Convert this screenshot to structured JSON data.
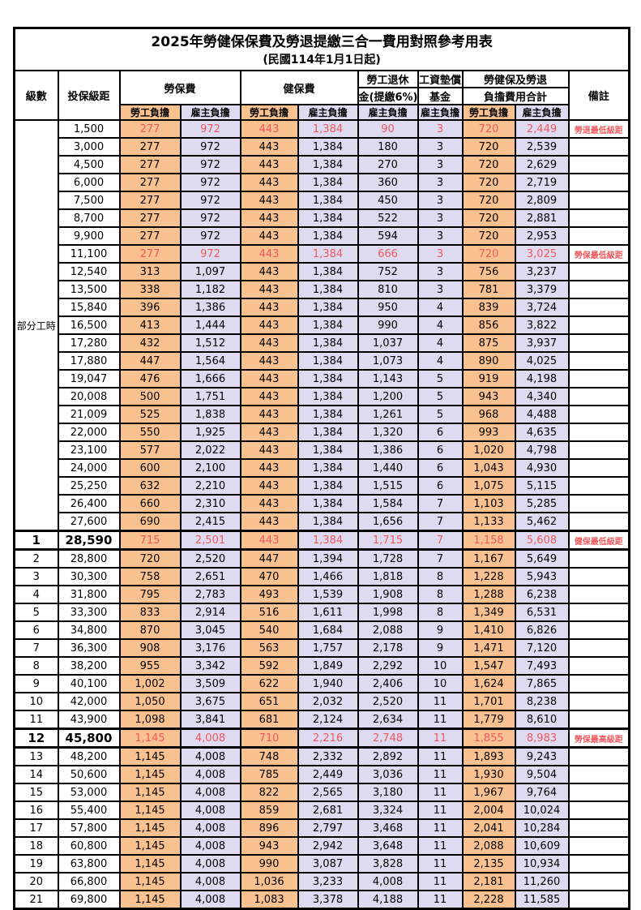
{
  "title": "2025年勞健保保費及勞退提繳三合一費用對照參考用表",
  "subtitle": "(民國114年1月1日起)",
  "columns": {
    "level": "級數",
    "bracket": "投保級距",
    "labor_insurance": "勞保費",
    "health_insurance": "健保費",
    "pension_line1": "勞工退休",
    "pension_line2": "金(提繳6%)",
    "wage_fund_line1": "工資墊償",
    "wage_fund_line2": "基金",
    "total_line1": "勞健保及勞退",
    "total_line2": "負擔費用合計",
    "remark": "備註",
    "employee_share": "勞工負擔",
    "employer_share": "雇主負擔"
  },
  "part_time_label": "部分工時",
  "part_time_span": 23,
  "colors": {
    "employee_fill": "#F8C18F",
    "employer_fill": "#DEDAF0",
    "highlight_text": "#EE5A5E"
  },
  "rows": [
    {
      "level": "",
      "bracket": "1,500",
      "labor_emp": "277",
      "labor_er": "972",
      "health_emp": "443",
      "health_er": "1,384",
      "pension_er": "90",
      "wage_er": "3",
      "total_emp": "720",
      "total_er": "2,449",
      "remark": "勞退最低級距",
      "highlight": true,
      "emphasis": false
    },
    {
      "level": "",
      "bracket": "3,000",
      "labor_emp": "277",
      "labor_er": "972",
      "health_emp": "443",
      "health_er": "1,384",
      "pension_er": "180",
      "wage_er": "3",
      "total_emp": "720",
      "total_er": "2,539",
      "remark": "",
      "highlight": false,
      "emphasis": false
    },
    {
      "level": "",
      "bracket": "4,500",
      "labor_emp": "277",
      "labor_er": "972",
      "health_emp": "443",
      "health_er": "1,384",
      "pension_er": "270",
      "wage_er": "3",
      "total_emp": "720",
      "total_er": "2,629",
      "remark": "",
      "highlight": false,
      "emphasis": false
    },
    {
      "level": "",
      "bracket": "6,000",
      "labor_emp": "277",
      "labor_er": "972",
      "health_emp": "443",
      "health_er": "1,384",
      "pension_er": "360",
      "wage_er": "3",
      "total_emp": "720",
      "total_er": "2,719",
      "remark": "",
      "highlight": false,
      "emphasis": false
    },
    {
      "level": "",
      "bracket": "7,500",
      "labor_emp": "277",
      "labor_er": "972",
      "health_emp": "443",
      "health_er": "1,384",
      "pension_er": "450",
      "wage_er": "3",
      "total_emp": "720",
      "total_er": "2,809",
      "remark": "",
      "highlight": false,
      "emphasis": false
    },
    {
      "level": "",
      "bracket": "8,700",
      "labor_emp": "277",
      "labor_er": "972",
      "health_emp": "443",
      "health_er": "1,384",
      "pension_er": "522",
      "wage_er": "3",
      "total_emp": "720",
      "total_er": "2,881",
      "remark": "",
      "highlight": false,
      "emphasis": false
    },
    {
      "level": "",
      "bracket": "9,900",
      "labor_emp": "277",
      "labor_er": "972",
      "health_emp": "443",
      "health_er": "1,384",
      "pension_er": "594",
      "wage_er": "3",
      "total_emp": "720",
      "total_er": "2,953",
      "remark": "",
      "highlight": false,
      "emphasis": false
    },
    {
      "level": "",
      "bracket": "11,100",
      "labor_emp": "277",
      "labor_er": "972",
      "health_emp": "443",
      "health_er": "1,384",
      "pension_er": "666",
      "wage_er": "3",
      "total_emp": "720",
      "total_er": "3,025",
      "remark": "勞保最低級距",
      "highlight": true,
      "emphasis": false
    },
    {
      "level": "",
      "bracket": "12,540",
      "labor_emp": "313",
      "labor_er": "1,097",
      "health_emp": "443",
      "health_er": "1,384",
      "pension_er": "752",
      "wage_er": "3",
      "total_emp": "756",
      "total_er": "3,237",
      "remark": "",
      "highlight": false,
      "emphasis": false
    },
    {
      "level": "",
      "bracket": "13,500",
      "labor_emp": "338",
      "labor_er": "1,182",
      "health_emp": "443",
      "health_er": "1,384",
      "pension_er": "810",
      "wage_er": "3",
      "total_emp": "781",
      "total_er": "3,379",
      "remark": "",
      "highlight": false,
      "emphasis": false
    },
    {
      "level": "",
      "bracket": "15,840",
      "labor_emp": "396",
      "labor_er": "1,386",
      "health_emp": "443",
      "health_er": "1,384",
      "pension_er": "950",
      "wage_er": "4",
      "total_emp": "839",
      "total_er": "3,724",
      "remark": "",
      "highlight": false,
      "emphasis": false
    },
    {
      "level": "",
      "bracket": "16,500",
      "labor_emp": "413",
      "labor_er": "1,444",
      "health_emp": "443",
      "health_er": "1,384",
      "pension_er": "990",
      "wage_er": "4",
      "total_emp": "856",
      "total_er": "3,822",
      "remark": "",
      "highlight": false,
      "emphasis": false
    },
    {
      "level": "",
      "bracket": "17,280",
      "labor_emp": "432",
      "labor_er": "1,512",
      "health_emp": "443",
      "health_er": "1,384",
      "pension_er": "1,037",
      "wage_er": "4",
      "total_emp": "875",
      "total_er": "3,937",
      "remark": "",
      "highlight": false,
      "emphasis": false
    },
    {
      "level": "",
      "bracket": "17,880",
      "labor_emp": "447",
      "labor_er": "1,564",
      "health_emp": "443",
      "health_er": "1,384",
      "pension_er": "1,073",
      "wage_er": "4",
      "total_emp": "890",
      "total_er": "4,025",
      "remark": "",
      "highlight": false,
      "emphasis": false
    },
    {
      "level": "",
      "bracket": "19,047",
      "labor_emp": "476",
      "labor_er": "1,666",
      "health_emp": "443",
      "health_er": "1,384",
      "pension_er": "1,143",
      "wage_er": "5",
      "total_emp": "919",
      "total_er": "4,198",
      "remark": "",
      "highlight": false,
      "emphasis": false
    },
    {
      "level": "",
      "bracket": "20,008",
      "labor_emp": "500",
      "labor_er": "1,751",
      "health_emp": "443",
      "health_er": "1,384",
      "pension_er": "1,200",
      "wage_er": "5",
      "total_emp": "943",
      "total_er": "4,340",
      "remark": "",
      "highlight": false,
      "emphasis": false
    },
    {
      "level": "",
      "bracket": "21,009",
      "labor_emp": "525",
      "labor_er": "1,838",
      "health_emp": "443",
      "health_er": "1,384",
      "pension_er": "1,261",
      "wage_er": "5",
      "total_emp": "968",
      "total_er": "4,488",
      "remark": "",
      "highlight": false,
      "emphasis": false
    },
    {
      "level": "",
      "bracket": "22,000",
      "labor_emp": "550",
      "labor_er": "1,925",
      "health_emp": "443",
      "health_er": "1,384",
      "pension_er": "1,320",
      "wage_er": "6",
      "total_emp": "993",
      "total_er": "4,635",
      "remark": "",
      "highlight": false,
      "emphasis": false
    },
    {
      "level": "",
      "bracket": "23,100",
      "labor_emp": "577",
      "labor_er": "2,022",
      "health_emp": "443",
      "health_er": "1,384",
      "pension_er": "1,386",
      "wage_er": "6",
      "total_emp": "1,020",
      "total_er": "4,798",
      "remark": "",
      "highlight": false,
      "emphasis": false
    },
    {
      "level": "",
      "bracket": "24,000",
      "labor_emp": "600",
      "labor_er": "2,100",
      "health_emp": "443",
      "health_er": "1,384",
      "pension_er": "1,440",
      "wage_er": "6",
      "total_emp": "1,043",
      "total_er": "4,930",
      "remark": "",
      "highlight": false,
      "emphasis": false
    },
    {
      "level": "",
      "bracket": "25,250",
      "labor_emp": "632",
      "labor_er": "2,210",
      "health_emp": "443",
      "health_er": "1,384",
      "pension_er": "1,515",
      "wage_er": "6",
      "total_emp": "1,075",
      "total_er": "5,115",
      "remark": "",
      "highlight": false,
      "emphasis": false
    },
    {
      "level": "",
      "bracket": "26,400",
      "labor_emp": "660",
      "labor_er": "2,310",
      "health_emp": "443",
      "health_er": "1,384",
      "pension_er": "1,584",
      "wage_er": "7",
      "total_emp": "1,103",
      "total_er": "5,285",
      "remark": "",
      "highlight": false,
      "emphasis": false
    },
    {
      "level": "",
      "bracket": "27,600",
      "labor_emp": "690",
      "labor_er": "2,415",
      "health_emp": "443",
      "health_er": "1,384",
      "pension_er": "1,656",
      "wage_er": "7",
      "total_emp": "1,133",
      "total_er": "5,462",
      "remark": "",
      "highlight": false,
      "emphasis": false
    },
    {
      "level": "1",
      "bracket": "28,590",
      "labor_emp": "715",
      "labor_er": "2,501",
      "health_emp": "443",
      "health_er": "1,384",
      "pension_er": "1,715",
      "wage_er": "7",
      "total_emp": "1,158",
      "total_er": "5,608",
      "remark": "健保最低級距",
      "highlight": true,
      "emphasis": true
    },
    {
      "level": "2",
      "bracket": "28,800",
      "labor_emp": "720",
      "labor_er": "2,520",
      "health_emp": "447",
      "health_er": "1,394",
      "pension_er": "1,728",
      "wage_er": "7",
      "total_emp": "1,167",
      "total_er": "5,649",
      "remark": "",
      "highlight": false,
      "emphasis": false
    },
    {
      "level": "3",
      "bracket": "30,300",
      "labor_emp": "758",
      "labor_er": "2,651",
      "health_emp": "470",
      "health_er": "1,466",
      "pension_er": "1,818",
      "wage_er": "8",
      "total_emp": "1,228",
      "total_er": "5,943",
      "remark": "",
      "highlight": false,
      "emphasis": false
    },
    {
      "level": "4",
      "bracket": "31,800",
      "labor_emp": "795",
      "labor_er": "2,783",
      "health_emp": "493",
      "health_er": "1,539",
      "pension_er": "1,908",
      "wage_er": "8",
      "total_emp": "1,288",
      "total_er": "6,238",
      "remark": "",
      "highlight": false,
      "emphasis": false
    },
    {
      "level": "5",
      "bracket": "33,300",
      "labor_emp": "833",
      "labor_er": "2,914",
      "health_emp": "516",
      "health_er": "1,611",
      "pension_er": "1,998",
      "wage_er": "8",
      "total_emp": "1,349",
      "total_er": "6,531",
      "remark": "",
      "highlight": false,
      "emphasis": false
    },
    {
      "level": "6",
      "bracket": "34,800",
      "labor_emp": "870",
      "labor_er": "3,045",
      "health_emp": "540",
      "health_er": "1,684",
      "pension_er": "2,088",
      "wage_er": "9",
      "total_emp": "1,410",
      "total_er": "6,826",
      "remark": "",
      "highlight": false,
      "emphasis": false
    },
    {
      "level": "7",
      "bracket": "36,300",
      "labor_emp": "908",
      "labor_er": "3,176",
      "health_emp": "563",
      "health_er": "1,757",
      "pension_er": "2,178",
      "wage_er": "9",
      "total_emp": "1,471",
      "total_er": "7,120",
      "remark": "",
      "highlight": false,
      "emphasis": false
    },
    {
      "level": "8",
      "bracket": "38,200",
      "labor_emp": "955",
      "labor_er": "3,342",
      "health_emp": "592",
      "health_er": "1,849",
      "pension_er": "2,292",
      "wage_er": "10",
      "total_emp": "1,547",
      "total_er": "7,493",
      "remark": "",
      "highlight": false,
      "emphasis": false
    },
    {
      "level": "9",
      "bracket": "40,100",
      "labor_emp": "1,002",
      "labor_er": "3,509",
      "health_emp": "622",
      "health_er": "1,940",
      "pension_er": "2,406",
      "wage_er": "10",
      "total_emp": "1,624",
      "total_er": "7,865",
      "remark": "",
      "highlight": false,
      "emphasis": false
    },
    {
      "level": "10",
      "bracket": "42,000",
      "labor_emp": "1,050",
      "labor_er": "3,675",
      "health_emp": "651",
      "health_er": "2,032",
      "pension_er": "2,520",
      "wage_er": "11",
      "total_emp": "1,701",
      "total_er": "8,238",
      "remark": "",
      "highlight": false,
      "emphasis": false
    },
    {
      "level": "11",
      "bracket": "43,900",
      "labor_emp": "1,098",
      "labor_er": "3,841",
      "health_emp": "681",
      "health_er": "2,124",
      "pension_er": "2,634",
      "wage_er": "11",
      "total_emp": "1,779",
      "total_er": "8,610",
      "remark": "",
      "highlight": false,
      "emphasis": false
    },
    {
      "level": "12",
      "bracket": "45,800",
      "labor_emp": "1,145",
      "labor_er": "4,008",
      "health_emp": "710",
      "health_er": "2,216",
      "pension_er": "2,748",
      "wage_er": "11",
      "total_emp": "1,855",
      "total_er": "8,983",
      "remark": "勞保最高級距",
      "highlight": true,
      "emphasis": true
    },
    {
      "level": "13",
      "bracket": "48,200",
      "labor_emp": "1,145",
      "labor_er": "4,008",
      "health_emp": "748",
      "health_er": "2,332",
      "pension_er": "2,892",
      "wage_er": "11",
      "total_emp": "1,893",
      "total_er": "9,243",
      "remark": "",
      "highlight": false,
      "emphasis": false
    },
    {
      "level": "14",
      "bracket": "50,600",
      "labor_emp": "1,145",
      "labor_er": "4,008",
      "health_emp": "785",
      "health_er": "2,449",
      "pension_er": "3,036",
      "wage_er": "11",
      "total_emp": "1,930",
      "total_er": "9,504",
      "remark": "",
      "highlight": false,
      "emphasis": false
    },
    {
      "level": "15",
      "bracket": "53,000",
      "labor_emp": "1,145",
      "labor_er": "4,008",
      "health_emp": "822",
      "health_er": "2,565",
      "pension_er": "3,180",
      "wage_er": "11",
      "total_emp": "1,967",
      "total_er": "9,764",
      "remark": "",
      "highlight": false,
      "emphasis": false
    },
    {
      "level": "16",
      "bracket": "55,400",
      "labor_emp": "1,145",
      "labor_er": "4,008",
      "health_emp": "859",
      "health_er": "2,681",
      "pension_er": "3,324",
      "wage_er": "11",
      "total_emp": "2,004",
      "total_er": "10,024",
      "remark": "",
      "highlight": false,
      "emphasis": false
    },
    {
      "level": "17",
      "bracket": "57,800",
      "labor_emp": "1,145",
      "labor_er": "4,008",
      "health_emp": "896",
      "health_er": "2,797",
      "pension_er": "3,468",
      "wage_er": "11",
      "total_emp": "2,041",
      "total_er": "10,284",
      "remark": "",
      "highlight": false,
      "emphasis": false
    },
    {
      "level": "18",
      "bracket": "60,800",
      "labor_emp": "1,145",
      "labor_er": "4,008",
      "health_emp": "943",
      "health_er": "2,942",
      "pension_er": "3,648",
      "wage_er": "11",
      "total_emp": "2,088",
      "total_er": "10,609",
      "remark": "",
      "highlight": false,
      "emphasis": false
    },
    {
      "level": "19",
      "bracket": "63,800",
      "labor_emp": "1,145",
      "labor_er": "4,008",
      "health_emp": "990",
      "health_er": "3,087",
      "pension_er": "3,828",
      "wage_er": "11",
      "total_emp": "2,135",
      "total_er": "10,934",
      "remark": "",
      "highlight": false,
      "emphasis": false
    },
    {
      "level": "20",
      "bracket": "66,800",
      "labor_emp": "1,145",
      "labor_er": "4,008",
      "health_emp": "1,036",
      "health_er": "3,233",
      "pension_er": "4,008",
      "wage_er": "11",
      "total_emp": "2,181",
      "total_er": "11,260",
      "remark": "",
      "highlight": false,
      "emphasis": false
    },
    {
      "level": "21",
      "bracket": "69,800",
      "labor_emp": "1,145",
      "labor_er": "4,008",
      "health_emp": "1,083",
      "health_er": "3,378",
      "pension_er": "4,188",
      "wage_er": "11",
      "total_emp": "2,228",
      "total_er": "11,585",
      "remark": "",
      "highlight": false,
      "emphasis": false
    }
  ]
}
